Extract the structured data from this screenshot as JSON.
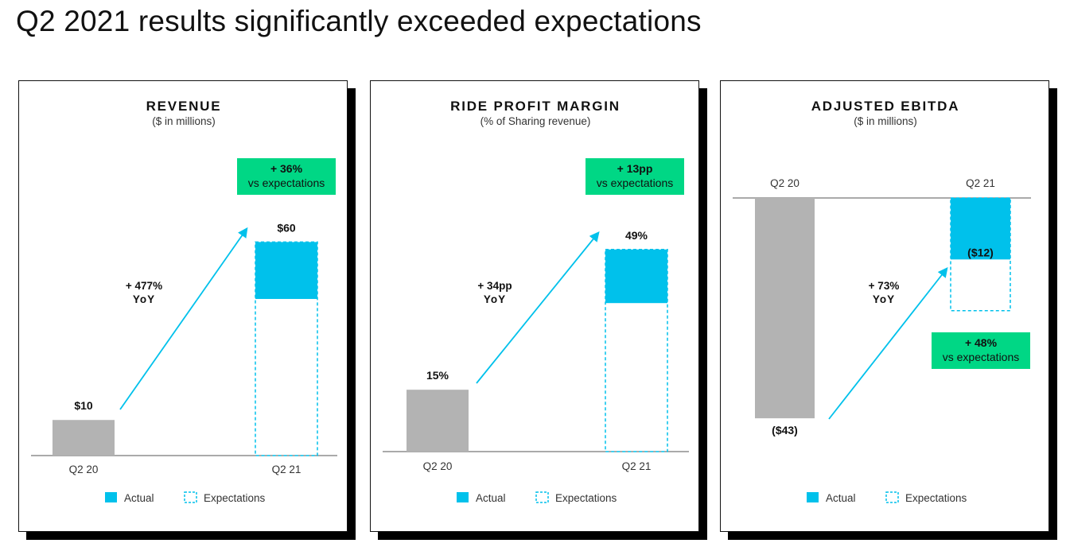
{
  "page": {
    "title": "Q2 2021 results significantly exceeded expectations"
  },
  "colors": {
    "actual": "#00c1eb",
    "prior": "#b3b3b3",
    "badge": "#00d785",
    "arrow": "#00c1eb",
    "shadow": "#000000"
  },
  "legend": {
    "actual": "Actual",
    "expectations": "Expectations"
  },
  "chart_data": [
    {
      "type": "bar",
      "title": "REVENUE",
      "subtitle": "($ in millions)",
      "categories": [
        "Q2 20",
        "Q2 21"
      ],
      "series": [
        {
          "name": "Actual",
          "values": [
            10,
            60
          ],
          "labels": [
            "$10",
            "$60"
          ]
        },
        {
          "name": "Expectations",
          "values": [
            null,
            44
          ]
        }
      ],
      "ylim": [
        0,
        65
      ],
      "growth": [
        "+ 477%",
        "YoY"
      ],
      "badge": [
        "+ 36%",
        "vs expectations"
      ]
    },
    {
      "type": "bar",
      "title": "RIDE PROFIT MARGIN",
      "subtitle": "(% of Sharing revenue)",
      "categories": [
        "Q2 20",
        "Q2 21"
      ],
      "series": [
        {
          "name": "Actual",
          "values": [
            15,
            49
          ],
          "labels": [
            "15%",
            "49%"
          ]
        },
        {
          "name": "Expectations",
          "values": [
            null,
            36
          ]
        }
      ],
      "ylim": [
        0,
        53
      ],
      "growth": [
        "+ 34pp",
        "YoY"
      ],
      "badge": [
        "+ 13pp",
        "vs expectations"
      ]
    },
    {
      "type": "bar",
      "title": "ADJUSTED EBITDA",
      "subtitle": "($ in millions)",
      "categories": [
        "Q2 20",
        "Q2 21"
      ],
      "series": [
        {
          "name": "Actual",
          "values": [
            -43,
            -12
          ],
          "labels": [
            "($43)",
            "($12)"
          ]
        },
        {
          "name": "Expectations",
          "values": [
            null,
            -22
          ]
        }
      ],
      "ylim": [
        -45,
        0
      ],
      "growth": [
        "+ 73%",
        "YoY"
      ],
      "badge": [
        "+ 48%",
        "vs expectations"
      ]
    }
  ]
}
